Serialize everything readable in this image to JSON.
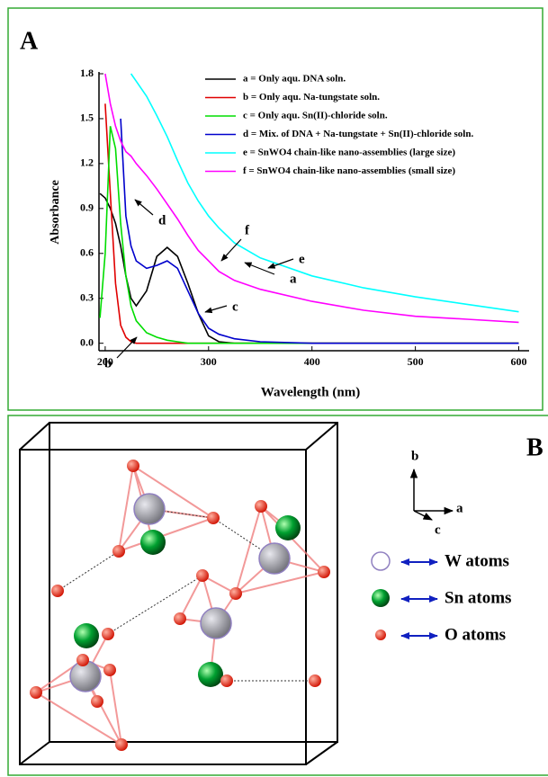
{
  "chart_data": {
    "type": "line",
    "panel_label": "A",
    "x_label": "Wavelength (nm)",
    "y_label": "Absorbance",
    "xlim": [
      194,
      610
    ],
    "ylim": [
      -0.05,
      1.8
    ],
    "xticks": [
      200,
      300,
      400,
      500,
      600
    ],
    "yticks": [
      {
        "value": 0,
        "label": "0.0"
      },
      0.3,
      0.6,
      0.9,
      1.2,
      1.5,
      1.8
    ],
    "x": [
      195,
      200,
      205,
      210,
      215,
      220,
      225,
      230,
      240,
      250,
      260,
      270,
      280,
      290,
      300,
      310,
      325,
      350,
      400,
      450,
      500,
      550,
      600
    ],
    "series": [
      {
        "name": "a = Only aqu. DNA soln.",
        "color": "#000000",
        "values": [
          1.0,
          0.97,
          0.9,
          0.8,
          0.65,
          0.45,
          0.3,
          0.25,
          0.35,
          0.58,
          0.64,
          0.58,
          0.4,
          0.2,
          0.05,
          0.01,
          0,
          0,
          0,
          0,
          0,
          0,
          0
        ]
      },
      {
        "name": "b = Only aqu. Na-tungstate soln.",
        "color": "#e00000",
        "values": [
          null,
          1.6,
          1.0,
          0.4,
          0.12,
          0.04,
          0.01,
          0,
          0,
          0,
          0,
          0,
          0,
          0,
          0,
          0,
          0,
          0,
          0,
          0,
          0,
          0,
          0
        ]
      },
      {
        "name": "c = Only aqu. Sn(II)-chloride soln.",
        "color": "#00dd00",
        "values": [
          0.17,
          0.6,
          1.45,
          1.3,
          0.8,
          0.45,
          0.25,
          0.15,
          0.07,
          0.04,
          0.02,
          0.01,
          0,
          0,
          0,
          0,
          0,
          0,
          0,
          0,
          0,
          0,
          0
        ]
      },
      {
        "name": "d = Mix. of DNA + Na-tungstate + Sn(II)-chloride soln.",
        "color": "#0000cc",
        "values": [
          null,
          null,
          null,
          null,
          1.5,
          0.85,
          0.65,
          0.55,
          0.5,
          0.52,
          0.55,
          0.5,
          0.35,
          0.2,
          0.1,
          0.06,
          0.03,
          0.01,
          0,
          0,
          0,
          0,
          0
        ]
      },
      {
        "name": "e = SnWO4 chain-like nano-assemblies (large size)",
        "color": "#00ffff",
        "values": [
          null,
          null,
          null,
          null,
          null,
          null,
          1.8,
          1.75,
          1.65,
          1.52,
          1.38,
          1.22,
          1.07,
          0.95,
          0.85,
          0.77,
          0.67,
          0.57,
          0.45,
          0.37,
          0.31,
          0.26,
          0.21
        ]
      },
      {
        "name": "f = SnWO4 chain-like nano-assemblies (small size)",
        "color": "#ff00ff",
        "values": [
          null,
          1.8,
          1.6,
          1.45,
          1.35,
          1.28,
          1.25,
          1.2,
          1.12,
          1.03,
          0.93,
          0.83,
          0.72,
          0.62,
          0.55,
          0.48,
          0.42,
          0.36,
          0.28,
          0.22,
          0.18,
          0.16,
          0.14
        ]
      }
    ],
    "annotations": [
      "a",
      "b",
      "c",
      "d",
      "e",
      "f"
    ]
  },
  "structure": {
    "panel_label": "B",
    "axis_labels": [
      "b",
      "a",
      "c"
    ],
    "legend": [
      "W atoms",
      "Sn atoms",
      "O atoms"
    ]
  }
}
